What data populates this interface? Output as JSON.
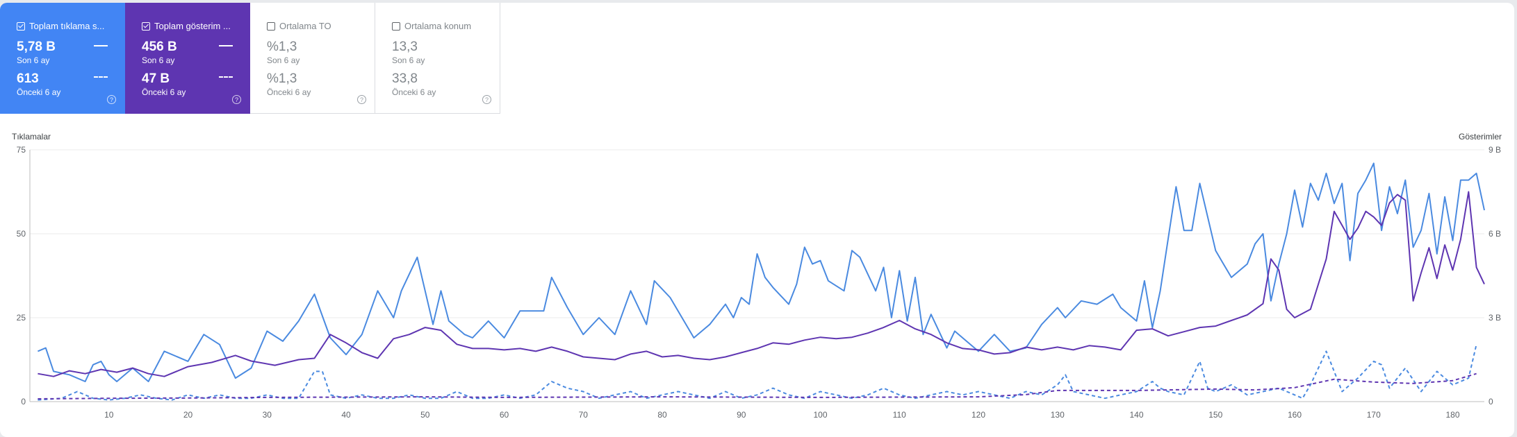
{
  "cards": [
    {
      "title": "Toplam tıklama s...",
      "checked": true,
      "style": "blue",
      "current_value": "5,78 B",
      "current_label": "Son 6 ay",
      "previous_value": "613",
      "previous_label": "Önceki 6 ay"
    },
    {
      "title": "Toplam gösterim ...",
      "checked": true,
      "style": "purple",
      "current_value": "456 B",
      "current_label": "Son 6 ay",
      "previous_value": "47 B",
      "previous_label": "Önceki 6 ay"
    },
    {
      "title": "Ortalama TO",
      "checked": false,
      "style": "inactive",
      "current_value": "%1,3",
      "current_label": "Son 6 ay",
      "previous_value": "%1,3",
      "previous_label": "Önceki 6 ay"
    },
    {
      "title": "Ortalama konum",
      "checked": false,
      "style": "inactive",
      "current_value": "13,3",
      "current_label": "Son 6 ay",
      "previous_value": "33,8",
      "previous_label": "Önceki 6 ay"
    }
  ],
  "help_icon_glyph": "?",
  "chart_data": {
    "type": "line",
    "left_axis_label": "Tıklamalar",
    "right_axis_label": "Gösterimler",
    "left_ticks": [
      "0",
      "25",
      "50",
      "75"
    ],
    "left_tick_values": [
      0,
      25,
      50,
      75
    ],
    "right_ticks": [
      "0",
      "3 B",
      "6 B",
      "9 B"
    ],
    "right_tick_values": [
      0,
      3000,
      6000,
      9000
    ],
    "x_ticks": [
      10,
      20,
      30,
      40,
      50,
      60,
      70,
      80,
      90,
      100,
      110,
      120,
      130,
      140,
      150,
      160,
      170,
      180
    ],
    "xlim": [
      0,
      184
    ],
    "ylim_left": [
      0,
      75
    ],
    "ylim_right": [
      0,
      9000
    ],
    "grid": true,
    "colors": {
      "clicks": "#4a8ae0",
      "impressions": "#5e35b1",
      "grid": "#ebebeb",
      "axis": "#bdbdbd"
    },
    "series": [
      {
        "name": "Toplam tıklama sayısı — Son 6 ay",
        "axis": "left",
        "style": "solid",
        "color": "#4a8ae0",
        "x": [
          1,
          2,
          3,
          5,
          7,
          8,
          9,
          10,
          11,
          13,
          15,
          17,
          20,
          22,
          24,
          26,
          28,
          30,
          32,
          34,
          36,
          38,
          40,
          42,
          44,
          46,
          47,
          49,
          51,
          52,
          53,
          55,
          56,
          58,
          60,
          62,
          65,
          66,
          68,
          70,
          72,
          74,
          76,
          78,
          79,
          81,
          84,
          86,
          88,
          89,
          90,
          91,
          92,
          93,
          94,
          96,
          97,
          98,
          99,
          100,
          101,
          103,
          104,
          105,
          107,
          108,
          109,
          110,
          111,
          112,
          113,
          114,
          116,
          117,
          120,
          122,
          124,
          126,
          128,
          130,
          131,
          133,
          135,
          137,
          138,
          140,
          141,
          142,
          143,
          145,
          146,
          147,
          148,
          150,
          151,
          152,
          154,
          155,
          156,
          157,
          158,
          159,
          160,
          161,
          162,
          163,
          164,
          165,
          166,
          167,
          168,
          169,
          170,
          171,
          172,
          173,
          174,
          175,
          176,
          177,
          178,
          179,
          180,
          181,
          182,
          183,
          184
        ],
        "y": [
          15,
          16,
          9,
          8,
          6,
          11,
          12,
          8,
          6,
          10,
          6,
          15,
          12,
          20,
          17,
          7,
          10,
          21,
          18,
          24,
          32,
          19,
          14,
          20,
          33,
          25,
          33,
          43,
          23,
          33,
          24,
          20,
          19,
          24,
          19,
          27,
          27,
          37,
          28,
          20,
          25,
          20,
          33,
          23,
          36,
          31,
          19,
          23,
          29,
          25,
          31,
          29,
          44,
          37,
          34,
          29,
          35,
          46,
          41,
          42,
          36,
          33,
          45,
          43,
          33,
          40,
          25,
          39,
          24,
          37,
          20,
          26,
          16,
          21,
          15,
          20,
          15,
          16,
          23,
          28,
          25,
          30,
          29,
          32,
          28,
          24,
          36,
          22,
          33,
          64,
          51,
          51,
          65,
          45,
          41,
          37,
          41,
          47,
          50,
          30,
          41,
          50,
          63,
          52,
          65,
          60,
          68,
          59,
          65,
          42,
          62,
          66,
          71,
          51,
          64,
          56,
          66,
          46,
          51,
          62,
          44,
          61,
          48,
          66,
          66,
          68,
          57
        ]
      },
      {
        "name": "Toplam gösterim sayısı — Son 6 ay",
        "axis": "right",
        "style": "solid",
        "color": "#5e35b1",
        "x": [
          1,
          3,
          5,
          7,
          9,
          11,
          13,
          15,
          17,
          20,
          23,
          26,
          28,
          31,
          34,
          36,
          38,
          40,
          42,
          44,
          46,
          48,
          50,
          52,
          54,
          56,
          58,
          60,
          62,
          64,
          66,
          68,
          70,
          72,
          74,
          76,
          78,
          80,
          82,
          84,
          86,
          88,
          90,
          92,
          94,
          96,
          98,
          100,
          102,
          104,
          106,
          108,
          110,
          112,
          114,
          116,
          118,
          120,
          122,
          124,
          126,
          128,
          130,
          132,
          134,
          136,
          138,
          140,
          142,
          144,
          146,
          148,
          150,
          152,
          154,
          156,
          157,
          158,
          159,
          160,
          162,
          164,
          165,
          166,
          167,
          168,
          169,
          170,
          171,
          172,
          173,
          174,
          175,
          176,
          177,
          178,
          179,
          180,
          181,
          182,
          183,
          184
        ],
        "y": [
          1000,
          900,
          1100,
          1000,
          1150,
          1050,
          1200,
          1000,
          900,
          1250,
          1400,
          1650,
          1450,
          1300,
          1500,
          1550,
          2400,
          2100,
          1750,
          1550,
          2250,
          2400,
          2650,
          2550,
          2050,
          1900,
          1900,
          1850,
          1900,
          1800,
          1950,
          1800,
          1600,
          1550,
          1500,
          1700,
          1800,
          1600,
          1650,
          1550,
          1500,
          1600,
          1750,
          1900,
          2100,
          2050,
          2200,
          2300,
          2250,
          2300,
          2450,
          2650,
          2900,
          2600,
          2400,
          2100,
          1900,
          1850,
          1700,
          1750,
          1950,
          1850,
          1950,
          1850,
          2000,
          1950,
          1850,
          2550,
          2600,
          2350,
          2500,
          2650,
          2700,
          2900,
          3100,
          3500,
          5100,
          4700,
          3300,
          3000,
          3300,
          5100,
          6800,
          6300,
          5800,
          6200,
          6800,
          6600,
          6300,
          7100,
          7400,
          7200,
          3600,
          4600,
          5500,
          4400,
          5600,
          4700,
          5800,
          7500,
          4800,
          4200
        ]
      },
      {
        "name": "Toplam tıklama sayısı — Önceki 6 ay",
        "axis": "left",
        "style": "dashed",
        "color": "#4a8ae0",
        "x": [
          1,
          4,
          6,
          8,
          10,
          12,
          14,
          16,
          18,
          20,
          22,
          24,
          26,
          28,
          30,
          32,
          34,
          36,
          37,
          38,
          40,
          42,
          44,
          46,
          48,
          50,
          52,
          54,
          56,
          58,
          60,
          62,
          64,
          66,
          68,
          70,
          72,
          74,
          76,
          78,
          80,
          82,
          84,
          86,
          88,
          90,
          92,
          94,
          96,
          98,
          100,
          102,
          104,
          106,
          108,
          110,
          112,
          114,
          116,
          118,
          120,
          122,
          124,
          126,
          128,
          130,
          131,
          132,
          134,
          136,
          138,
          140,
          142,
          143,
          144,
          146,
          148,
          149,
          150,
          152,
          154,
          156,
          158,
          160,
          161,
          162,
          164,
          166,
          168,
          170,
          171,
          172,
          174,
          176,
          178,
          180,
          182,
          183
        ],
        "y": [
          0.5,
          1,
          3,
          1,
          0.5,
          1,
          2,
          1,
          0.5,
          2,
          1,
          2,
          1,
          1,
          2,
          1,
          1,
          9,
          9,
          2,
          1,
          2,
          1,
          1,
          2,
          1,
          1,
          3,
          1,
          1,
          2,
          1,
          2,
          6,
          4,
          3,
          1,
          2,
          3,
          1,
          2,
          3,
          2,
          1,
          3,
          1,
          2,
          4,
          2,
          1,
          3,
          2,
          1,
          2,
          4,
          2,
          1,
          2,
          3,
          2,
          3,
          2,
          1,
          3,
          2,
          5,
          8,
          3,
          2,
          1,
          2,
          3,
          6,
          4,
          3,
          2,
          12,
          4,
          3,
          5,
          2,
          3,
          4,
          2,
          1,
          5,
          15,
          3,
          7,
          12,
          11,
          4,
          10,
          3,
          9,
          5,
          7,
          17
        ]
      },
      {
        "name": "Toplam gösterim sayısı — Önceki 6 ay",
        "axis": "right",
        "style": "dashed",
        "color": "#5e35b1",
        "x": [
          1,
          10,
          20,
          30,
          40,
          50,
          60,
          70,
          80,
          90,
          100,
          110,
          120,
          126,
          130,
          140,
          150,
          155,
          160,
          165,
          170,
          175,
          180,
          183
        ],
        "y": [
          100,
          120,
          130,
          150,
          160,
          170,
          150,
          160,
          170,
          160,
          150,
          160,
          170,
          250,
          400,
          400,
          450,
          420,
          500,
          800,
          700,
          650,
          750,
          1000
        ]
      }
    ]
  }
}
